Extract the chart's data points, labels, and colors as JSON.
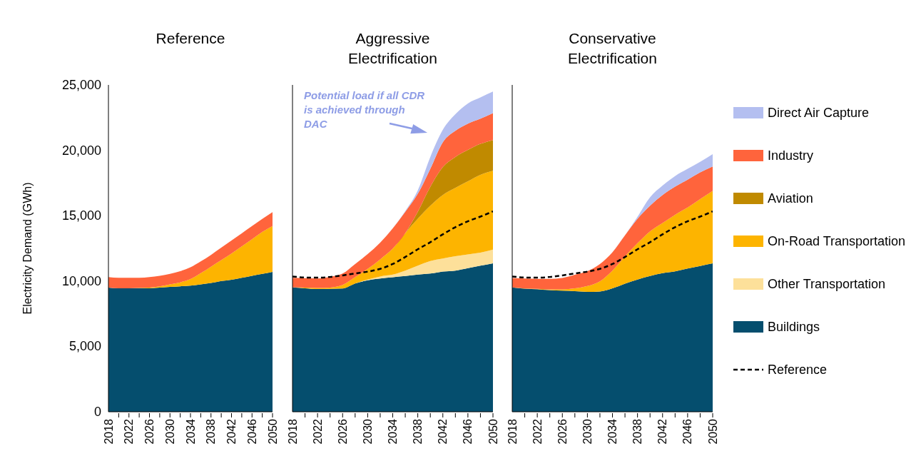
{
  "chart_data": [
    {
      "type": "area",
      "stacked": true,
      "title": "Reference",
      "ylabel": "Electricity Demand (GWh)",
      "x": [
        2018,
        2020,
        2022,
        2024,
        2026,
        2028,
        2030,
        2032,
        2034,
        2036,
        2038,
        2040,
        2042,
        2044,
        2046,
        2048,
        2050
      ],
      "xlim": [
        2018,
        2050
      ],
      "xticks": [
        2018,
        {
          "value": 2020,
          "label": null
        },
        2022,
        {
          "value": 2024,
          "label": null
        },
        2026,
        {
          "value": 2028,
          "label": null
        },
        2030,
        {
          "value": 2032,
          "label": null
        },
        2034,
        {
          "value": 2036,
          "label": null
        },
        2038,
        {
          "value": 2040,
          "label": null
        },
        2042,
        {
          "value": 2044,
          "label": null
        },
        2046,
        {
          "value": 2048,
          "label": null
        },
        2050
      ],
      "ylim": [
        0,
        25000
      ],
      "yticks": [
        0,
        {
          "value": 5000,
          "label": "5,000"
        },
        {
          "value": 10000,
          "label": "10,000"
        },
        {
          "value": 15000,
          "label": "15,000"
        },
        {
          "value": 20000,
          "label": "20,000"
        },
        {
          "value": 25000,
          "label": "25,000"
        }
      ],
      "series": [
        {
          "color": "#054e6e",
          "values": [
            9500,
            9450,
            9450,
            9450,
            9450,
            9500,
            9550,
            9600,
            9650,
            9750,
            9850,
            10000,
            10100,
            10250,
            10400,
            10550,
            10700
          ]
        },
        {
          "color": "#fdb400",
          "values": [
            0,
            0,
            0,
            20,
            50,
            100,
            200,
            300,
            500,
            850,
            1250,
            1600,
            2000,
            2400,
            2800,
            3200,
            3500
          ]
        },
        {
          "color": "#ff643c",
          "values": [
            800,
            800,
            800,
            780,
            800,
            800,
            800,
            850,
            900,
            900,
            900,
            950,
            1000,
            1000,
            1000,
            1000,
            1070
          ]
        }
      ]
    },
    {
      "type": "area",
      "stacked": true,
      "title": "Aggressive Electrification",
      "x": [
        2018,
        2020,
        2022,
        2024,
        2026,
        2028,
        2030,
        2032,
        2034,
        2036,
        2038,
        2040,
        2042,
        2044,
        2046,
        2048,
        2050
      ],
      "xlim": [
        2018,
        2050
      ],
      "xticks": [
        2018,
        {
          "value": 2020,
          "label": null
        },
        2022,
        {
          "value": 2024,
          "label": null
        },
        2026,
        {
          "value": 2028,
          "label": null
        },
        2030,
        {
          "value": 2032,
          "label": null
        },
        2034,
        {
          "value": 2036,
          "label": null
        },
        2038,
        {
          "value": 2040,
          "label": null
        },
        2042,
        {
          "value": 2044,
          "label": null
        },
        2046,
        {
          "value": 2048,
          "label": null
        },
        2050
      ],
      "ylim": [
        0,
        25000
      ],
      "tick_labels": "x",
      "legend": "right",
      "annotations": [
        "Potential load if all CDR is achieved through DAC"
      ],
      "series": [
        {
          "name": "Buildings",
          "color": "#054e6e",
          "values": [
            9510,
            9450,
            9390,
            9400,
            9430,
            9810,
            10060,
            10200,
            10290,
            10380,
            10500,
            10570,
            10720,
            10800,
            10990,
            11170,
            11350
          ]
        },
        {
          "name": "Other Transportation",
          "color": "#fde09a",
          "values": [
            0,
            0,
            0,
            0,
            0,
            0,
            50,
            150,
            200,
            420,
            670,
            960,
            1000,
            1100,
            1050,
            1000,
            1050
          ]
        },
        {
          "name": "On-Road Transportation",
          "color": "#fdb400",
          "values": [
            0,
            50,
            80,
            100,
            270,
            490,
            820,
            1310,
            1990,
            2860,
            3590,
            4230,
            4860,
            5220,
            5590,
            5950,
            6030
          ]
        },
        {
          "name": "Aviation",
          "color": "#c08a00",
          "values": [
            0,
            0,
            0,
            0,
            0,
            0,
            0,
            0,
            0,
            0,
            540,
            1450,
            2140,
            2370,
            2400,
            2370,
            2360
          ]
        },
        {
          "name": "Industry",
          "color": "#ff643c",
          "values": [
            740,
            720,
            730,
            820,
            870,
            1000,
            1130,
            1280,
            1550,
            1640,
            1370,
            1370,
            1900,
            2000,
            2010,
            1930,
            2060
          ]
        },
        {
          "name": "Direct Air Capture",
          "color": "#b4bff0",
          "values": [
            0,
            0,
            0,
            0,
            0,
            0,
            0,
            0,
            0,
            50,
            270,
            910,
            950,
            1270,
            1540,
            1620,
            1640
          ]
        },
        {
          "name": "Reference",
          "type": "line",
          "line_style": "dashed",
          "color": "#000000",
          "values": [
            10350,
            10270,
            10260,
            10310,
            10430,
            10580,
            10720,
            10930,
            11300,
            11840,
            12430,
            12970,
            13570,
            14120,
            14570,
            14930,
            15330
          ]
        }
      ]
    },
    {
      "type": "area",
      "stacked": true,
      "title": "Conservative Electrification",
      "x": [
        2018,
        2020,
        2022,
        2024,
        2026,
        2028,
        2030,
        2032,
        2034,
        2036,
        2038,
        2040,
        2042,
        2044,
        2046,
        2048,
        2050
      ],
      "xlim": [
        2018,
        2050
      ],
      "xticks": [
        2018,
        {
          "value": 2020,
          "label": null
        },
        2022,
        {
          "value": 2024,
          "label": null
        },
        2026,
        {
          "value": 2028,
          "label": null
        },
        2030,
        {
          "value": 2032,
          "label": null
        },
        2034,
        {
          "value": 2036,
          "label": null
        },
        2038,
        {
          "value": 2040,
          "label": null
        },
        2042,
        {
          "value": 2044,
          "label": null
        },
        2046,
        {
          "value": 2048,
          "label": null
        },
        2050
      ],
      "ylim": [
        0,
        25000
      ],
      "tick_labels": "x",
      "series": [
        {
          "color": "#054e6e",
          "values": [
            9510,
            9420,
            9370,
            9300,
            9260,
            9220,
            9170,
            9200,
            9440,
            9800,
            10110,
            10380,
            10600,
            10740,
            10960,
            11150,
            11350
          ]
        },
        {
          "color": "#fdb400",
          "values": [
            0,
            10,
            30,
            60,
            100,
            220,
            450,
            780,
            1360,
            2090,
            2780,
            3420,
            3840,
            4330,
            4660,
            5110,
            5550
          ]
        },
        {
          "color": "#ff643c",
          "values": [
            730,
            770,
            770,
            810,
            880,
            1040,
            1130,
            1320,
            1400,
            1610,
            1870,
            1960,
            2140,
            2150,
            2140,
            2050,
            1860
          ]
        },
        {
          "color": "#b4bff0",
          "values": [
            0,
            0,
            0,
            0,
            0,
            0,
            0,
            0,
            0,
            0,
            150,
            640,
            720,
            810,
            820,
            810,
            940
          ]
        },
        {
          "type": "line",
          "line_style": "dashed",
          "color": "#000000",
          "values": [
            10350,
            10270,
            10260,
            10310,
            10430,
            10580,
            10720,
            10930,
            11300,
            11840,
            12430,
            12970,
            13570,
            14120,
            14570,
            14930,
            15330
          ]
        }
      ]
    }
  ]
}
